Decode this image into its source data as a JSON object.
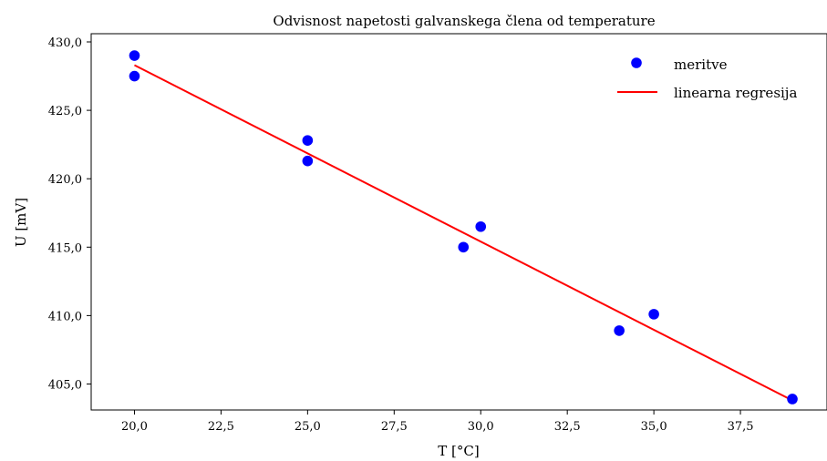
{
  "chart_data": {
    "type": "scatter",
    "title": "Odvisnost napetosti galvanskega člena od temperature",
    "xlabel": "T [°C]",
    "ylabel": "U [mV]",
    "xlim": [
      18.75,
      40.0
    ],
    "ylim": [
      403.1,
      430.6
    ],
    "x_ticks": [
      "20,0",
      "22,5",
      "25,0",
      "27,5",
      "30,0",
      "32,5",
      "35,0",
      "37,5"
    ],
    "y_ticks": [
      "405,0",
      "410,0",
      "415,0",
      "420,0",
      "425,0",
      "430,0"
    ],
    "x_tick_values": [
      20.0,
      22.5,
      25.0,
      27.5,
      30.0,
      32.5,
      35.0,
      37.5
    ],
    "y_tick_values": [
      405.0,
      410.0,
      415.0,
      420.0,
      425.0,
      430.0
    ],
    "grid": false,
    "legend_position": "top-right",
    "series": [
      {
        "name": "meritve",
        "kind": "scatter",
        "color": "#0000ff",
        "points": [
          {
            "x": 20.0,
            "y": 429.0
          },
          {
            "x": 20.0,
            "y": 427.5
          },
          {
            "x": 25.0,
            "y": 422.8
          },
          {
            "x": 25.0,
            "y": 421.3
          },
          {
            "x": 29.5,
            "y": 415.0
          },
          {
            "x": 30.0,
            "y": 416.5
          },
          {
            "x": 34.0,
            "y": 408.9
          },
          {
            "x": 35.0,
            "y": 410.1
          },
          {
            "x": 39.0,
            "y": 403.9
          }
        ]
      },
      {
        "name": "linearna regresija",
        "kind": "line",
        "color": "#ff0000",
        "points": [
          {
            "x": 20.0,
            "y": 428.3
          },
          {
            "x": 39.0,
            "y": 403.8
          }
        ]
      }
    ]
  }
}
